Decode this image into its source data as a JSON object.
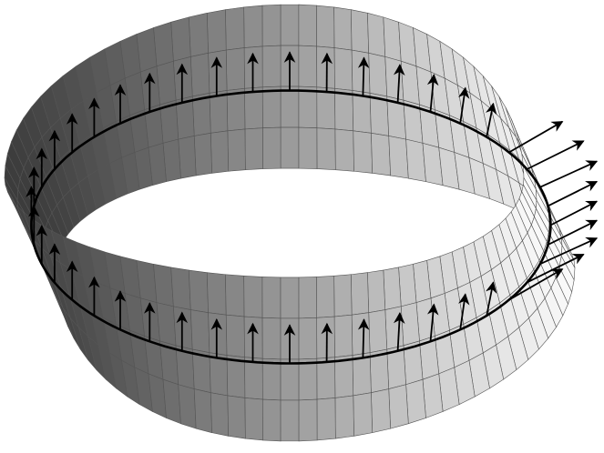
{
  "diagram": {
    "subject": "mobius-strip-normal-vectors",
    "colors": {
      "background": "#ffffff",
      "surface_dark": "#3c3c3c",
      "surface_light": "#f4f4f4",
      "grid": "#555555",
      "centerline": "#000000",
      "arrow": "#000000"
    }
  }
}
